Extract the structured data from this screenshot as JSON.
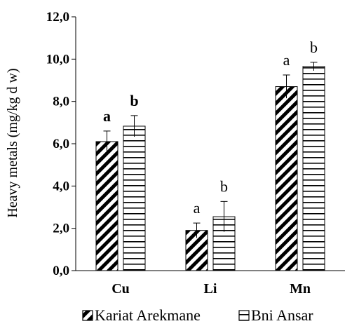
{
  "chart_data": {
    "type": "bar",
    "categories": [
      "Cu",
      "Li",
      "Mn"
    ],
    "series": [
      {
        "name": "Kariat Arekmane",
        "values": [
          6.1,
          1.9,
          8.7
        ],
        "errors": [
          0.5,
          0.35,
          0.55
        ],
        "pattern": "diagonal"
      },
      {
        "name": "Bni Ansar",
        "values": [
          6.83,
          2.55,
          9.65
        ],
        "errors": [
          0.5,
          0.72,
          0.2
        ],
        "pattern": "horizontal"
      }
    ],
    "annotations": [
      {
        "category": "Cu",
        "labels": [
          "a",
          "b"
        ],
        "bold": true
      },
      {
        "category": "Li",
        "labels": [
          "a",
          "b"
        ],
        "bold": false
      },
      {
        "category": "Mn",
        "labels": [
          "a",
          "b"
        ],
        "bold": false
      }
    ],
    "ylabel": "Heavy metals (mg/kg d w)",
    "xlabel": "",
    "ylim": [
      0,
      12
    ],
    "yticks": [
      "0,0",
      "2,0",
      "4,0",
      "6,0",
      "8,0",
      "10,0",
      "12,0"
    ],
    "grid": false,
    "legend_position": "bottom",
    "colors": {
      "bar_fill": "#ffffff",
      "pattern": "#000000",
      "axis": "#000000"
    }
  }
}
